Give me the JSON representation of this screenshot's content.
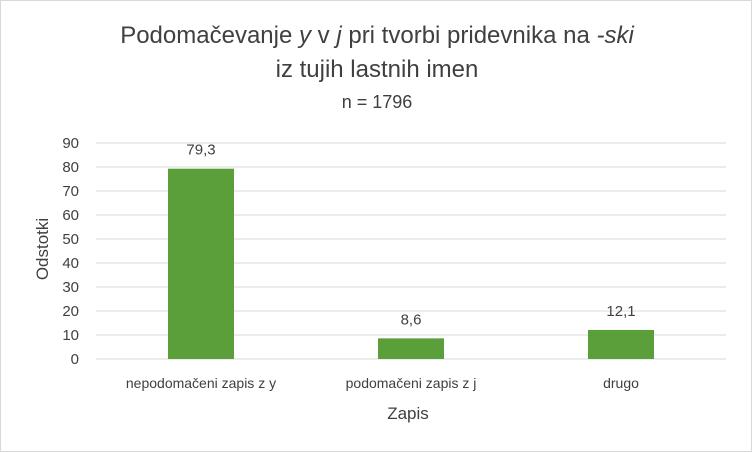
{
  "chart_data": {
    "type": "bar",
    "title": {
      "line1_parts": [
        "Podomačevanje ",
        "y",
        " v ",
        "j",
        " pri tvorbi pridevnika na ",
        "-ski"
      ],
      "line1_italic": [
        false,
        true,
        false,
        true,
        false,
        true
      ],
      "line2": "iz tujih lastnih imen"
    },
    "subtitle": "n = 1796",
    "categories": [
      "nepodomačeni zapis z y",
      "podomačeni zapis z j",
      "drugo"
    ],
    "values": [
      79.3,
      8.6,
      12.1
    ],
    "data_labels": [
      "79,3",
      "8,6",
      "12,1"
    ],
    "xlabel": "Zapis",
    "ylabel": "Odstotki",
    "ylim": [
      0,
      90
    ],
    "yticks": [
      0,
      10,
      20,
      30,
      40,
      50,
      60,
      70,
      80,
      90
    ],
    "grid": true,
    "legend": "none",
    "colors": {
      "bar": "#5b9f3b",
      "grid": "#d9d9d9",
      "text": "#404040"
    }
  }
}
